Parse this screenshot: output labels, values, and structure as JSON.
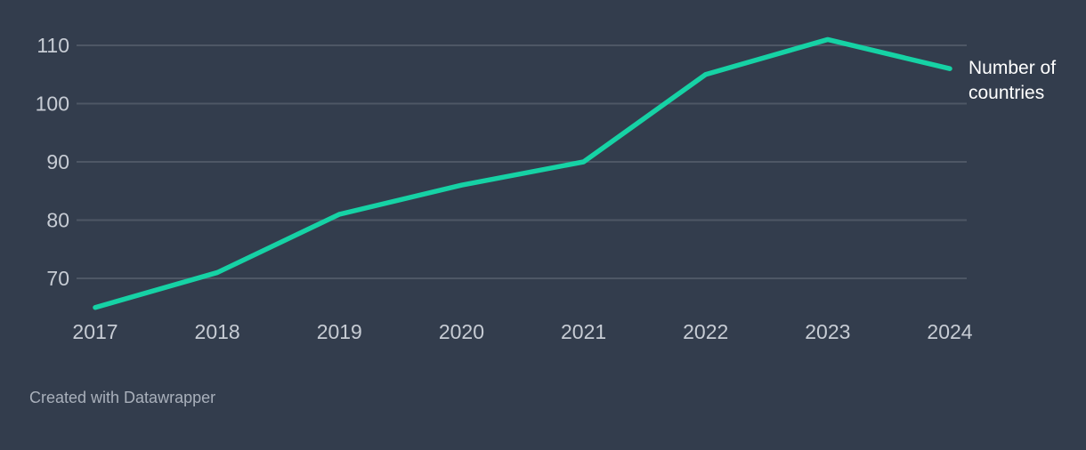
{
  "chart_data": {
    "type": "line",
    "x": [
      2017,
      2018,
      2019,
      2020,
      2021,
      2022,
      2023,
      2024
    ],
    "series": [
      {
        "name": "Number of countries",
        "values": [
          65,
          71,
          81,
          86,
          90,
          105,
          111,
          106
        ]
      }
    ],
    "title": "",
    "xlabel": "",
    "ylabel": "",
    "ylim": [
      63.8,
      113
    ],
    "yticks": [
      70,
      80,
      90,
      100,
      110
    ],
    "grid": true,
    "legend_position": "direct-label-right"
  },
  "annotations": {
    "series_label": "Number of countries"
  },
  "footer": {
    "credit": "Created with Datawrapper"
  },
  "colors": {
    "background": "#333D4D",
    "line": "#16D2A5",
    "grid": "#4E5765",
    "tick": "#C7CCD4",
    "label": "#FFFFFF",
    "footer": "#A9B0BB"
  }
}
